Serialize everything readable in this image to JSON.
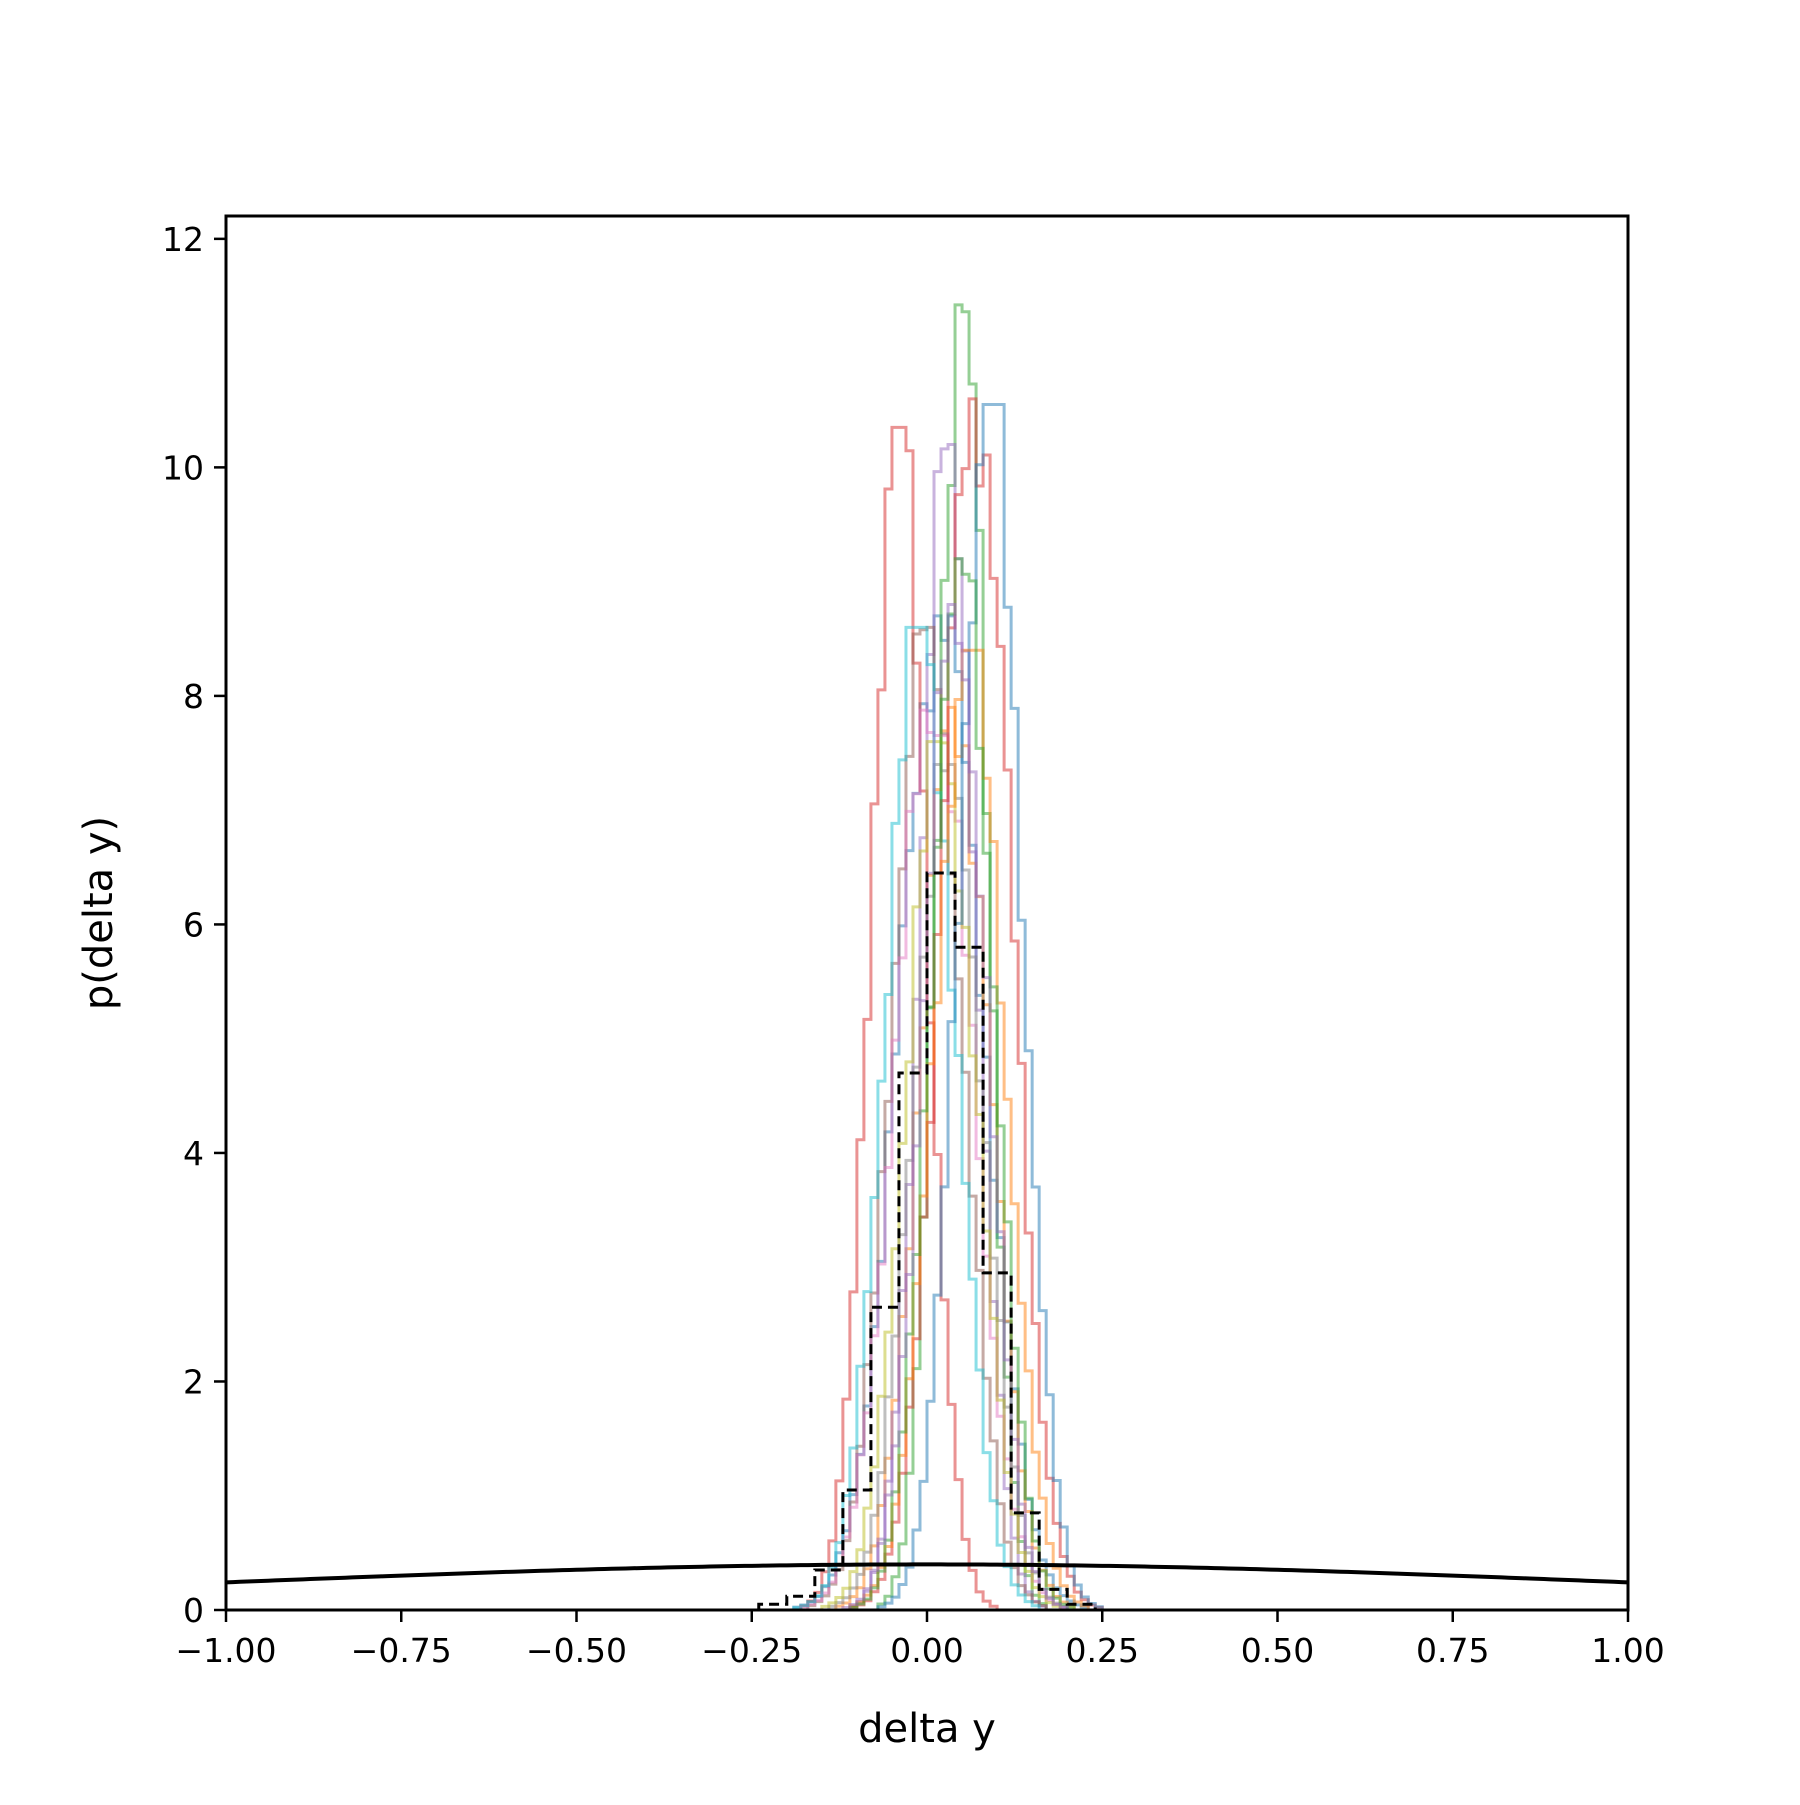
{
  "chart_data": {
    "type": "histogram",
    "xlabel": "delta y",
    "ylabel": "p(delta y)",
    "xlim": [
      -1.0,
      1.0
    ],
    "ylim": [
      0,
      12.2
    ],
    "xticks": [
      -1.0,
      -0.75,
      -0.5,
      -0.25,
      0.0,
      0.25,
      0.5,
      0.75,
      1.0
    ],
    "xtick_labels": [
      "−1.00",
      "−0.75",
      "−0.50",
      "−0.25",
      "0.00",
      "0.25",
      "0.50",
      "0.75",
      "1.00"
    ],
    "yticks": [
      0,
      2,
      4,
      6,
      8,
      10,
      12
    ],
    "ytick_labels": [
      "0",
      "2",
      "4",
      "6",
      "8",
      "10",
      "12"
    ],
    "grid": false,
    "legend": false,
    "series": [
      {
        "color": "#1f77b4",
        "mean": 0.02,
        "sd": 0.06,
        "peak": 8.7
      },
      {
        "color": "#ff7f0e",
        "mean": 0.04,
        "sd": 0.05,
        "peak": 7.9
      },
      {
        "color": "#2ca02c",
        "mean": 0.05,
        "sd": 0.035,
        "peak": 11.55
      },
      {
        "color": "#d62728",
        "mean": -0.04,
        "sd": 0.04,
        "peak": 10.35
      },
      {
        "color": "#9467bd",
        "mean": 0.03,
        "sd": 0.04,
        "peak": 10.2
      },
      {
        "color": "#8c564b",
        "mean": 0.0,
        "sd": 0.05,
        "peak": 8.6
      },
      {
        "color": "#e377c2",
        "mean": 0.01,
        "sd": 0.055,
        "peak": 8.0
      },
      {
        "color": "#7f7f7f",
        "mean": 0.03,
        "sd": 0.05,
        "peak": 7.4
      },
      {
        "color": "#bcbd22",
        "mean": 0.02,
        "sd": 0.05,
        "peak": 7.6
      },
      {
        "color": "#17becf",
        "mean": -0.01,
        "sd": 0.05,
        "peak": 8.6
      },
      {
        "color": "#d62728",
        "mean": 0.07,
        "sd": 0.05,
        "peak": 10.6
      },
      {
        "color": "#1f77b4",
        "mean": 0.09,
        "sd": 0.045,
        "peak": 10.55
      },
      {
        "color": "#ff7f0e",
        "mean": 0.06,
        "sd": 0.05,
        "peak": 8.4
      },
      {
        "color": "#2ca02c",
        "mean": 0.05,
        "sd": 0.045,
        "peak": 9.2
      },
      {
        "color": "#9467bd",
        "mean": 0.04,
        "sd": 0.045,
        "peak": 8.8
      }
    ],
    "mean_histogram": {
      "style": "black dashed",
      "x": [
        -0.24,
        -0.2,
        -0.16,
        -0.12,
        -0.08,
        -0.04,
        0.0,
        0.04,
        0.08,
        0.12,
        0.16,
        0.2,
        0.24
      ],
      "values": [
        0.05,
        0.12,
        0.35,
        1.05,
        2.65,
        4.7,
        6.45,
        5.8,
        2.95,
        0.85,
        0.18,
        0.05,
        0.0
      ]
    },
    "reference_curve": {
      "style": "black solid",
      "type": "normal pdf",
      "mean": 0.0,
      "sd": 1.0
    }
  }
}
